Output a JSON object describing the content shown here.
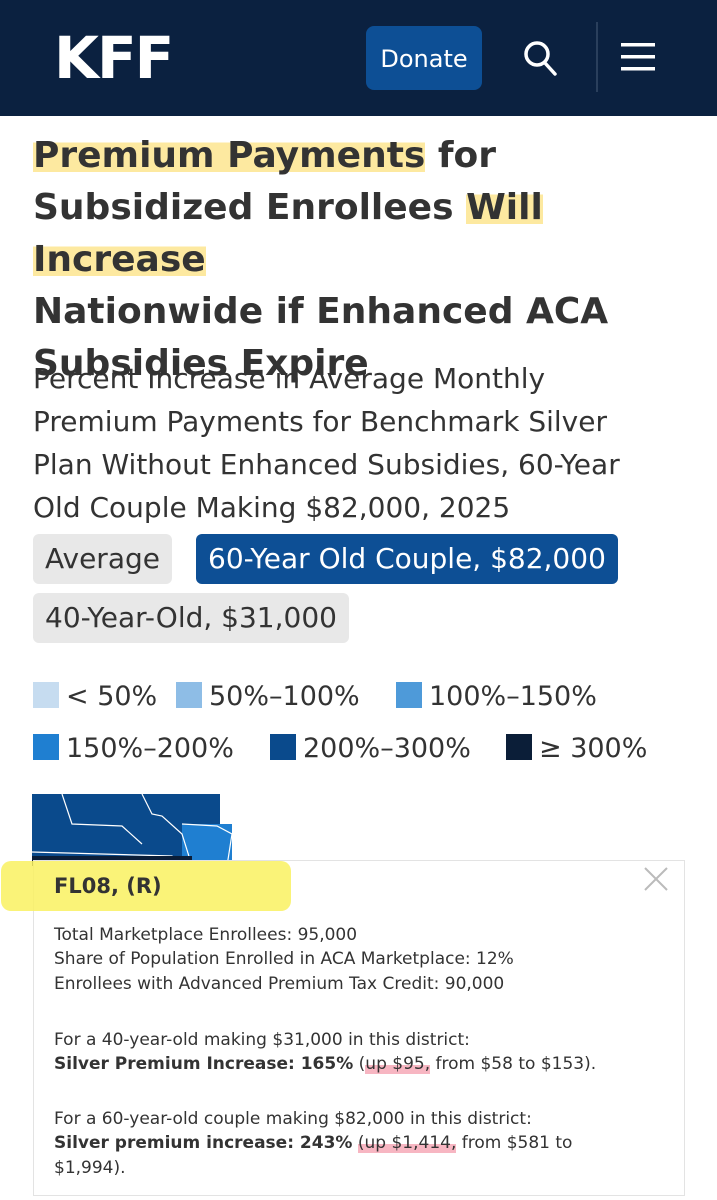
{
  "header": {
    "logo": "KFF",
    "donate_label": "Donate"
  },
  "colors": {
    "header_bg": "#0b2140",
    "accent": "#0d4f95",
    "highlight_title": "#fde9a0",
    "highlight_tooltip": "#f9f160",
    "highlight_pink": "#f7b6c2"
  },
  "icons": [
    "search-icon",
    "menu-icon",
    "close-icon"
  ],
  "title": {
    "line1_hl": "Premium Payments",
    "line1_rest": " for",
    "line2_pre": "Subsidized Enrollees ",
    "line2_hl": "Will Increase",
    "line3": "Nationwide if Enhanced ACA",
    "line4": "Subsidies Expire"
  },
  "subtitle": {
    "line1": "Percent Increase in Average Monthly",
    "line2": "Premium Payments for Benchmark Silver",
    "line3": "Plan Without Enhanced Subsidies, 60-Year",
    "line4": "Old Couple Making $82,000, 2025"
  },
  "tabs": [
    {
      "label": "Average",
      "selected": false
    },
    {
      "label": "60-Year Old Couple, $82,000",
      "selected": true
    },
    {
      "label": "40-Year-Old, $31,000",
      "selected": false
    }
  ],
  "legend": [
    {
      "label": "< 50%",
      "color": "#c6dcf0"
    },
    {
      "label": "50%–100%",
      "color": "#8ebde6"
    },
    {
      "label": "100%–150%",
      "color": "#4e9ad9"
    },
    {
      "label": "150%–200%",
      "color": "#1f7fd1"
    },
    {
      "label": "200%–300%",
      "color": "#0a4a8c"
    },
    {
      "label": "≥ 300%",
      "color": "#0b1e38"
    }
  ],
  "tooltip": {
    "title": "FL08, (R)",
    "enrollees": "Total Marketplace Enrollees: 95,000",
    "share": "Share of Population Enrolled in ACA Marketplace: 12%",
    "aptc": "Enrollees with Advanced Premium Tax Credit: 90,000",
    "age40_intro": "For a 40-year-old making $31,000 in this district:",
    "age40_label": "Silver Premium Increase: 165%",
    "age40_open": " (",
    "age40_up": "up $95,",
    "age40_rest": " from $58 to $153).",
    "age60_intro": "For a 60-year-old couple making $82,000 in this district:",
    "age60_label": "Silver premium increase: 243%",
    "age60_open": " ",
    "age60_up": "(up $1,414,",
    "age60_rest": " from $581 to",
    "age60_rest2": "$1,994)."
  }
}
